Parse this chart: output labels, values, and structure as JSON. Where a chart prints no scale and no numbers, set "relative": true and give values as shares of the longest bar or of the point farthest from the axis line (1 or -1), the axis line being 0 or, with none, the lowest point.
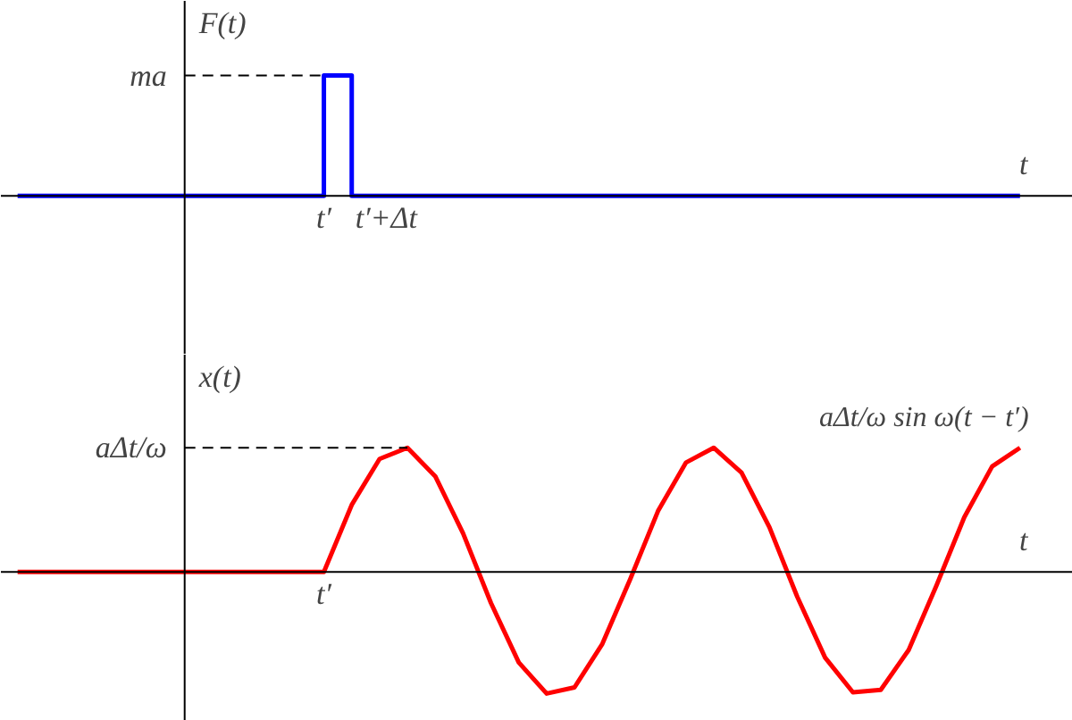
{
  "chart_data": [
    {
      "type": "step",
      "relative": true,
      "xlabel": "t",
      "ylabel": "F(t)",
      "grid": false,
      "categories": [
        null,
        null,
        null,
        null,
        null,
        null,
        null,
        null,
        null,
        null,
        null,
        null,
        null,
        null,
        null,
        null,
        null,
        null,
        null,
        null,
        null,
        null,
        null,
        null,
        null,
        null,
        null,
        null,
        null,
        null,
        null,
        null,
        null,
        null,
        null,
        null,
        null
      ],
      "annotations": [
        {
          "text": "t′",
          "y": 0
        },
        {
          "text": "t′+Δt",
          "y": 0
        }
      ],
      "ref_lines": [
        {
          "axis": "y",
          "value": 1,
          "label": "ma",
          "line_style": "dashed",
          "color": "#000000"
        }
      ],
      "series": [
        {
          "color": "#0000ff",
          "values": [
            0,
            0,
            0,
            0,
            0,
            0,
            0,
            0,
            0,
            0,
            0,
            1,
            0,
            0,
            0,
            0,
            0,
            0,
            0,
            0,
            0,
            0,
            0,
            0,
            0,
            0,
            0,
            0,
            0,
            0,
            0,
            0,
            0,
            0,
            0,
            0,
            0
          ]
        }
      ]
    },
    {
      "type": "line",
      "relative": true,
      "xlabel": "t",
      "ylabel": "x(t)",
      "grid": false,
      "categories": [
        null,
        null,
        null,
        null,
        null,
        null,
        null,
        null,
        null,
        null,
        null,
        null,
        null,
        null,
        null,
        null,
        null,
        null,
        null,
        null,
        null,
        null,
        null,
        null,
        null,
        null,
        null,
        null,
        null,
        null,
        null,
        null,
        null,
        null,
        null,
        null,
        null
      ],
      "annotations": [
        {
          "text": "t′",
          "y": 0
        }
      ],
      "ref_lines": [
        {
          "axis": "y",
          "value": 1,
          "label": "aΔt/ω",
          "line_style": "dashed",
          "color": "#000000"
        }
      ],
      "series": [
        {
          "name": "aΔt/ω sin ω(t − t′)",
          "color": "#ff0000",
          "values": [
            0,
            0,
            0,
            0,
            0,
            0,
            0,
            0,
            0,
            0,
            0,
            0,
            0.54,
            0.91,
            1,
            0.77,
            0.31,
            -0.25,
            -0.73,
            -0.98,
            -0.93,
            -0.58,
            -0.06,
            0.49,
            0.88,
            1,
            0.8,
            0.36,
            -0.2,
            -0.69,
            -0.97,
            -0.95,
            -0.63,
            -0.11,
            0.44,
            0.85,
            1
          ]
        }
      ]
    }
  ]
}
